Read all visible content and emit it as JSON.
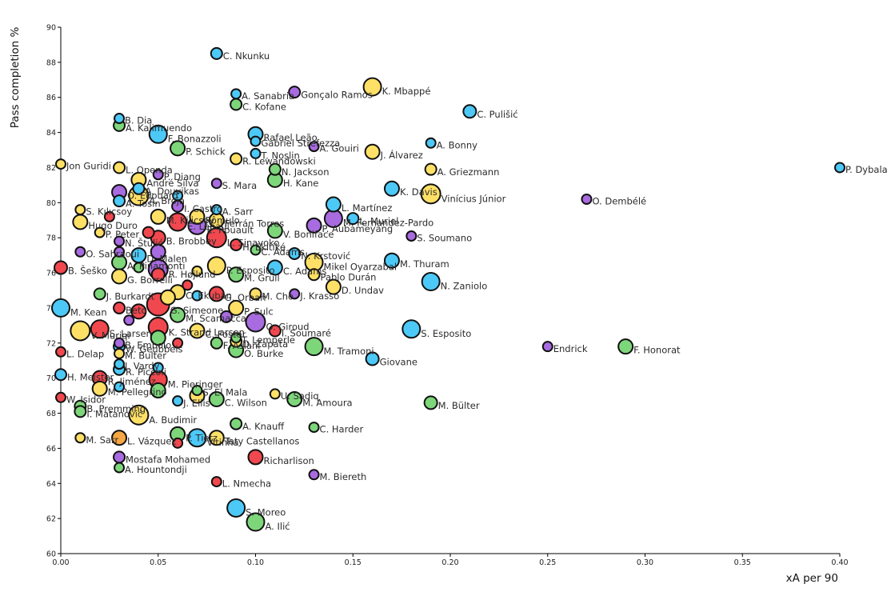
{
  "chart_data": {
    "type": "scatter",
    "title": "",
    "xlabel": "xA per 90",
    "ylabel": "Pass completion %",
    "xlim": [
      0,
      0.4
    ],
    "ylim": [
      60,
      90
    ],
    "xticks": [
      "0.00",
      "0.05",
      "0.10",
      "0.15",
      "0.20",
      "0.25",
      "0.30",
      "0.35",
      "0.40"
    ],
    "yticks": [
      "60",
      "62",
      "64",
      "66",
      "68",
      "70",
      "72",
      "74",
      "76",
      "78",
      "80",
      "82",
      "84",
      "86",
      "88",
      "90"
    ],
    "grid": false,
    "legend": "none",
    "colors": {
      "blue": "#4cc9f7",
      "green": "#7ed67a",
      "purple": "#a86be0",
      "yellow": "#ffe066",
      "red": "#f0484e",
      "orange": "#f5a742"
    },
    "points": [
      {
        "label": "C. Nkunku",
        "x": 0.08,
        "y": 88.5,
        "s": 7,
        "c": "blue"
      },
      {
        "label": "K. Mbappé",
        "x": 0.16,
        "y": 86.6,
        "s": 11,
        "c": "yellow"
      },
      {
        "label": "A. Sanabria",
        "x": 0.09,
        "y": 86.2,
        "s": 6,
        "c": "blue"
      },
      {
        "label": "Gonçalo Ramos",
        "x": 0.12,
        "y": 86.3,
        "s": 7,
        "c": "purple"
      },
      {
        "label": "C. Kofane",
        "x": 0.09,
        "y": 85.6,
        "s": 7,
        "c": "green"
      },
      {
        "label": "C. Pulišić",
        "x": 0.21,
        "y": 85.2,
        "s": 8,
        "c": "blue"
      },
      {
        "label": "B. Dia",
        "x": 0.03,
        "y": 84.8,
        "s": 6,
        "c": "blue"
      },
      {
        "label": "A. Kalimuendo",
        "x": 0.03,
        "y": 84.4,
        "s": 7,
        "c": "green"
      },
      {
        "label": "F. Bonazzoli",
        "x": 0.05,
        "y": 83.9,
        "s": 11,
        "c": "blue"
      },
      {
        "label": "Rafael Leão",
        "x": 0.1,
        "y": 83.9,
        "s": 9,
        "c": "blue"
      },
      {
        "label": "Gabriel Strefezza",
        "x": 0.1,
        "y": 83.5,
        "s": 6,
        "c": "blue"
      },
      {
        "label": "A. Bonny",
        "x": 0.19,
        "y": 83.4,
        "s": 6,
        "c": "blue"
      },
      {
        "label": "A. Gouiri",
        "x": 0.13,
        "y": 83.2,
        "s": 6,
        "c": "purple"
      },
      {
        "label": "P. Schick",
        "x": 0.06,
        "y": 83.1,
        "s": 9,
        "c": "green"
      },
      {
        "label": "J. Álvarez",
        "x": 0.16,
        "y": 82.9,
        "s": 9,
        "c": "yellow"
      },
      {
        "label": "T. Noslin",
        "x": 0.1,
        "y": 82.8,
        "s": 6,
        "c": "blue"
      },
      {
        "label": "R. Lewandowski",
        "x": 0.09,
        "y": 82.5,
        "s": 7,
        "c": "yellow"
      },
      {
        "label": "Jon Guridi",
        "x": 0.0,
        "y": 82.2,
        "s": 6,
        "c": "yellow"
      },
      {
        "label": "L. Openda",
        "x": 0.03,
        "y": 82.0,
        "s": 7,
        "c": "yellow"
      },
      {
        "label": "P. Dybala",
        "x": 0.4,
        "y": 82.0,
        "s": 6,
        "c": "blue"
      },
      {
        "label": "A. Griezmann",
        "x": 0.19,
        "y": 81.9,
        "s": 7,
        "c": "yellow"
      },
      {
        "label": "N. Jackson",
        "x": 0.11,
        "y": 81.9,
        "s": 7,
        "c": "green"
      },
      {
        "label": "P. Diang",
        "x": 0.05,
        "y": 81.6,
        "s": 6,
        "c": "purple"
      },
      {
        "label": "H. Kane",
        "x": 0.11,
        "y": 81.3,
        "s": 9,
        "c": "green"
      },
      {
        "label": "André Silva",
        "x": 0.04,
        "y": 81.3,
        "s": 9,
        "c": "yellow"
      },
      {
        "label": "S. Mara",
        "x": 0.08,
        "y": 81.1,
        "s": 6,
        "c": "purple"
      },
      {
        "label": "A. Douvikas",
        "x": 0.04,
        "y": 80.8,
        "s": 7,
        "c": "blue"
      },
      {
        "label": "K. Davis",
        "x": 0.17,
        "y": 80.8,
        "s": 9,
        "c": "blue"
      },
      {
        "label": "O. Édouard",
        "x": 0.03,
        "y": 80.6,
        "s": 9,
        "c": "purple"
      },
      {
        "label": "Vinícius Júnior",
        "x": 0.19,
        "y": 80.5,
        "s": 12,
        "c": "yellow"
      },
      {
        "label": "A. Broja",
        "x": 0.04,
        "y": 80.4,
        "s": 12,
        "c": "yellow"
      },
      {
        "label": "O. Dembélé",
        "x": 0.27,
        "y": 80.2,
        "s": 6,
        "c": "purple"
      },
      {
        "label": "A. Tosin",
        "x": 0.03,
        "y": 80.1,
        "s": 7,
        "c": "blue"
      },
      {
        "label": "L. Martínez",
        "x": 0.14,
        "y": 79.9,
        "s": 9,
        "c": "blue"
      },
      {
        "label": "I. Castro",
        "x": 0.06,
        "y": 79.8,
        "s": 7,
        "c": "purple"
      },
      {
        "label": "S. Kılıçsoy",
        "x": 0.01,
        "y": 79.6,
        "s": 6,
        "c": "yellow"
      },
      {
        "label": "A. Sarr",
        "x": 0.08,
        "y": 79.6,
        "s": 6,
        "c": "blue"
      },
      {
        "label": "M. Kilicsoy",
        "x": 0.05,
        "y": 79.2,
        "s": 9,
        "c": "yellow"
      },
      {
        "label": "M. Fernandez-Pardo",
        "x": 0.14,
        "y": 79.1,
        "s": 11,
        "c": "purple"
      },
      {
        "label": "Rômulo",
        "x": 0.07,
        "y": 79.2,
        "s": 9,
        "c": "yellow"
      },
      {
        "label": "Ferrán Torres",
        "x": 0.08,
        "y": 79.0,
        "s": 9,
        "c": "yellow"
      },
      {
        "label": "Hugo Duro",
        "x": 0.01,
        "y": 78.9,
        "s": 9,
        "c": "yellow"
      },
      {
        "label": "L. Muriel",
        "x": 0.15,
        "y": 79.1,
        "s": 7,
        "c": "blue"
      },
      {
        "label": "E. Lepaul",
        "x": 0.06,
        "y": 78.9,
        "s": 11,
        "c": "red"
      },
      {
        "label": "P. Aubameyang",
        "x": 0.13,
        "y": 78.7,
        "s": 9,
        "c": "purple"
      },
      {
        "label": "E. Rouault",
        "x": 0.07,
        "y": 78.7,
        "s": 11,
        "c": "purple"
      },
      {
        "label": "V. Boniface",
        "x": 0.11,
        "y": 78.4,
        "s": 9,
        "c": "green"
      },
      {
        "label": "P. Peter",
        "x": 0.02,
        "y": 78.3,
        "s": 6,
        "c": "yellow"
      },
      {
        "label": "S. Soumano",
        "x": 0.18,
        "y": 78.1,
        "s": 6,
        "c": "purple"
      },
      {
        "label": "B. Brobbey",
        "x": 0.05,
        "y": 78.0,
        "s": 9,
        "c": "red"
      },
      {
        "label": "L. Sinayoko",
        "x": 0.08,
        "y": 78.0,
        "s": 12,
        "c": "red"
      },
      {
        "label": "N. Štulić",
        "x": 0.03,
        "y": 77.8,
        "s": 6,
        "c": "purple"
      },
      {
        "label": "H. Ekitiké",
        "x": 0.09,
        "y": 77.6,
        "s": 7,
        "c": "red"
      },
      {
        "label": "O. Sahraoui",
        "x": 0.01,
        "y": 77.2,
        "s": 6,
        "c": "purple"
      },
      {
        "label": "C. Adams",
        "x": 0.1,
        "y": 77.3,
        "s": 6,
        "c": "green"
      },
      {
        "label": "D. Malen",
        "x": 0.04,
        "y": 77.0,
        "s": 9,
        "c": "blue"
      },
      {
        "label": "N. Krstović",
        "x": 0.12,
        "y": 77.1,
        "s": 7,
        "c": "blue"
      },
      {
        "label": "M. Thuram",
        "x": 0.17,
        "y": 76.7,
        "s": 9,
        "c": "blue"
      },
      {
        "label": "A. Pinamonti",
        "x": 0.03,
        "y": 76.6,
        "s": 9,
        "c": "green"
      },
      {
        "label": "Mikel Oyarzabal",
        "x": 0.13,
        "y": 76.6,
        "s": 11,
        "c": "yellow"
      },
      {
        "label": "P. Esposito",
        "x": 0.08,
        "y": 76.4,
        "s": 11,
        "c": "yellow"
      },
      {
        "label": "R. Højlund",
        "x": 0.05,
        "y": 76.2,
        "s": 12,
        "c": "purple"
      },
      {
        "label": "C. Adams",
        "x": 0.11,
        "y": 76.3,
        "s": 9,
        "c": "blue"
      },
      {
        "label": "B. Šeško",
        "x": 0.0,
        "y": 76.3,
        "s": 8,
        "c": "red"
      },
      {
        "label": "M. Grüll",
        "x": 0.09,
        "y": 75.9,
        "s": 9,
        "c": "green"
      },
      {
        "label": "Pablo Durán",
        "x": 0.13,
        "y": 75.9,
        "s": 7,
        "c": "yellow"
      },
      {
        "label": "G. Borrelli",
        "x": 0.03,
        "y": 75.8,
        "s": 9,
        "c": "yellow"
      },
      {
        "label": "N. Zaniolo",
        "x": 0.19,
        "y": 75.5,
        "s": 11,
        "c": "blue"
      },
      {
        "label": "D. Undav",
        "x": 0.14,
        "y": 75.2,
        "s": 9,
        "c": "yellow"
      },
      {
        "label": "C. Ekuban",
        "x": 0.06,
        "y": 74.9,
        "s": 9,
        "c": "yellow"
      },
      {
        "label": "J. Krasso",
        "x": 0.12,
        "y": 74.8,
        "s": 6,
        "c": "purple"
      },
      {
        "label": "J. Burkardt",
        "x": 0.02,
        "y": 74.8,
        "s": 7,
        "c": "green"
      },
      {
        "label": "G. Orban",
        "x": 0.08,
        "y": 74.8,
        "s": 9,
        "c": "red"
      },
      {
        "label": "M. Cho",
        "x": 0.1,
        "y": 74.8,
        "s": 7,
        "c": "yellow"
      },
      {
        "label": "M. Kean",
        "x": 0.0,
        "y": 74.0,
        "s": 11,
        "c": "blue"
      },
      {
        "label": "G. Simeone",
        "x": 0.05,
        "y": 74.2,
        "s": 14,
        "c": "red"
      },
      {
        "label": "P. Sulc",
        "x": 0.09,
        "y": 74.0,
        "s": 9,
        "c": "yellow"
      },
      {
        "label": "Beto",
        "x": 0.03,
        "y": 74.0,
        "s": 7,
        "c": "red"
      },
      {
        "label": "M. Scamacca",
        "x": 0.06,
        "y": 73.6,
        "s": 9,
        "c": "green"
      },
      {
        "label": "O. Giroud",
        "x": 0.1,
        "y": 73.2,
        "s": 12,
        "c": "purple"
      },
      {
        "label": "V. Muriqi",
        "x": 0.01,
        "y": 72.7,
        "s": 12,
        "c": "yellow"
      },
      {
        "label": "S. Larsen",
        "x": 0.02,
        "y": 72.8,
        "s": 11,
        "c": "red"
      },
      {
        "label": "S. Esposito",
        "x": 0.18,
        "y": 72.8,
        "s": 11,
        "c": "blue"
      },
      {
        "label": "C. Foster",
        "x": 0.07,
        "y": 72.7,
        "s": 9,
        "c": "yellow"
      },
      {
        "label": "I. Soumaré",
        "x": 0.11,
        "y": 72.7,
        "s": 7,
        "c": "red"
      },
      {
        "label": "K. Strand Larsen",
        "x": 0.05,
        "y": 72.9,
        "s": 12,
        "c": "red"
      },
      {
        "label": "T. Lemperle",
        "x": 0.09,
        "y": 72.3,
        "s": 6,
        "c": "green"
      },
      {
        "label": "D. Zapata",
        "x": 0.09,
        "y": 72.1,
        "s": 7,
        "c": "yellow"
      },
      {
        "label": "B. Embolo",
        "x": 0.03,
        "y": 72.0,
        "s": 6,
        "c": "purple"
      },
      {
        "label": "W. Geubbels",
        "x": 0.03,
        "y": 71.8,
        "s": 7,
        "c": "blue"
      },
      {
        "label": "M. Tramoni",
        "x": 0.13,
        "y": 71.8,
        "s": 11,
        "c": "green"
      },
      {
        "label": "F. Honorat",
        "x": 0.29,
        "y": 71.8,
        "s": 9,
        "c": "green"
      },
      {
        "label": "O. Burke",
        "x": 0.09,
        "y": 71.6,
        "s": 9,
        "c": "green"
      },
      {
        "label": "Endrick",
        "x": 0.25,
        "y": 71.8,
        "s": 6,
        "c": "purple"
      },
      {
        "label": "F. Aslani",
        "x": 0.08,
        "y": 72.0,
        "s": 7,
        "c": "green"
      },
      {
        "label": "L. Delap",
        "x": 0.0,
        "y": 71.5,
        "s": 6,
        "c": "red"
      },
      {
        "label": "M. Bulter",
        "x": 0.03,
        "y": 71.4,
        "s": 6,
        "c": "yellow"
      },
      {
        "label": "Giovane",
        "x": 0.16,
        "y": 71.1,
        "s": 8,
        "c": "blue"
      },
      {
        "label": "J. Vardy",
        "x": 0.03,
        "y": 70.8,
        "s": 6,
        "c": "blue"
      },
      {
        "label": "R. Piccoli",
        "x": 0.03,
        "y": 70.5,
        "s": 7,
        "c": "blue"
      },
      {
        "label": "H. Meister",
        "x": 0.0,
        "y": 70.2,
        "s": 7,
        "c": "blue"
      },
      {
        "label": "R. Jiménez",
        "x": 0.02,
        "y": 70.0,
        "s": 9,
        "c": "red"
      },
      {
        "label": "M. Pieringer",
        "x": 0.05,
        "y": 69.9,
        "s": 11,
        "c": "red"
      },
      {
        "label": "M. Pellegrino",
        "x": 0.02,
        "y": 69.4,
        "s": 9,
        "c": "yellow"
      },
      {
        "label": "S. El Mala",
        "x": 0.07,
        "y": 69.3,
        "s": 6,
        "c": "green"
      },
      {
        "label": "U. Sadiq",
        "x": 0.11,
        "y": 69.1,
        "s": 6,
        "c": "yellow"
      },
      {
        "label": "W. Isidor",
        "x": 0.0,
        "y": 68.9,
        "s": 6,
        "c": "red"
      },
      {
        "label": "J. Ellis",
        "x": 0.06,
        "y": 68.7,
        "s": 6,
        "c": "blue"
      },
      {
        "label": "C. Wilson",
        "x": 0.08,
        "y": 68.8,
        "s": 9,
        "c": "green"
      },
      {
        "label": "M. Amoura",
        "x": 0.12,
        "y": 68.8,
        "s": 9,
        "c": "green"
      },
      {
        "label": "M. Bülter",
        "x": 0.19,
        "y": 68.6,
        "s": 8,
        "c": "green"
      },
      {
        "label": "B. Premming",
        "x": 0.01,
        "y": 68.4,
        "s": 7,
        "c": "green"
      },
      {
        "label": "I. Matanović",
        "x": 0.01,
        "y": 68.1,
        "s": 7,
        "c": "green"
      },
      {
        "label": "A. Budimir",
        "x": 0.04,
        "y": 67.9,
        "s": 12,
        "c": "yellow"
      },
      {
        "label": "A. Knauff",
        "x": 0.09,
        "y": 67.4,
        "s": 7,
        "c": "green"
      },
      {
        "label": "C. Harder",
        "x": 0.13,
        "y": 67.2,
        "s": 6,
        "c": "green"
      },
      {
        "label": "M. Sarr",
        "x": 0.01,
        "y": 66.6,
        "s": 6,
        "c": "yellow"
      },
      {
        "label": "L. Vázquez",
        "x": 0.03,
        "y": 66.6,
        "s": 9,
        "c": "orange"
      },
      {
        "label": "P. Tietz",
        "x": 0.06,
        "y": 66.8,
        "s": 9,
        "c": "green"
      },
      {
        "label": "Vitinha",
        "x": 0.07,
        "y": 66.6,
        "s": 11,
        "c": "blue"
      },
      {
        "label": "Taty Castellanos",
        "x": 0.08,
        "y": 66.6,
        "s": 9,
        "c": "yellow"
      },
      {
        "label": "Richarlison",
        "x": 0.1,
        "y": 65.5,
        "s": 9,
        "c": "red"
      },
      {
        "label": "Mostafa Mohamed",
        "x": 0.03,
        "y": 65.5,
        "s": 7,
        "c": "purple"
      },
      {
        "label": "A. Hountondji",
        "x": 0.03,
        "y": 64.9,
        "s": 6,
        "c": "green"
      },
      {
        "label": "M. Biereth",
        "x": 0.13,
        "y": 64.5,
        "s": 6,
        "c": "purple"
      },
      {
        "label": "L. Nmecha",
        "x": 0.08,
        "y": 64.1,
        "s": 6,
        "c": "red"
      },
      {
        "label": "S. Moreo",
        "x": 0.09,
        "y": 62.6,
        "s": 11,
        "c": "blue"
      },
      {
        "label": "A. Ilić",
        "x": 0.1,
        "y": 61.8,
        "s": 11,
        "c": "green"
      },
      {
        "label": "",
        "x": 0.06,
        "y": 66.3,
        "s": 6,
        "c": "red"
      },
      {
        "label": "",
        "x": 0.065,
        "y": 75.3,
        "s": 6,
        "c": "red"
      },
      {
        "label": "",
        "x": 0.05,
        "y": 75.9,
        "s": 8,
        "c": "red"
      },
      {
        "label": "",
        "x": 0.07,
        "y": 76.1,
        "s": 6,
        "c": "yellow"
      },
      {
        "label": "",
        "x": 0.04,
        "y": 76.3,
        "s": 6,
        "c": "green"
      },
      {
        "label": "",
        "x": 0.055,
        "y": 74.6,
        "s": 9,
        "c": "yellow"
      },
      {
        "label": "",
        "x": 0.04,
        "y": 73.8,
        "s": 9,
        "c": "red"
      },
      {
        "label": "",
        "x": 0.035,
        "y": 73.3,
        "s": 6,
        "c": "purple"
      },
      {
        "label": "",
        "x": 0.06,
        "y": 72.0,
        "s": 6,
        "c": "red"
      },
      {
        "label": "",
        "x": 0.05,
        "y": 72.3,
        "s": 9,
        "c": "green"
      },
      {
        "label": "",
        "x": 0.07,
        "y": 74.7,
        "s": 6,
        "c": "blue"
      },
      {
        "label": "",
        "x": 0.085,
        "y": 73.5,
        "s": 7,
        "c": "purple"
      },
      {
        "label": "",
        "x": 0.06,
        "y": 80.4,
        "s": 6,
        "c": "blue"
      },
      {
        "label": "",
        "x": 0.05,
        "y": 77.2,
        "s": 9,
        "c": "purple"
      },
      {
        "label": "",
        "x": 0.045,
        "y": 78.3,
        "s": 7,
        "c": "red"
      },
      {
        "label": "",
        "x": 0.03,
        "y": 77.2,
        "s": 6,
        "c": "purple"
      },
      {
        "label": "",
        "x": 0.025,
        "y": 79.2,
        "s": 6,
        "c": "red"
      },
      {
        "label": "",
        "x": 0.03,
        "y": 69.5,
        "s": 6,
        "c": "blue"
      },
      {
        "label": "",
        "x": 0.05,
        "y": 70.6,
        "s": 6,
        "c": "blue"
      },
      {
        "label": "",
        "x": 0.07,
        "y": 69.0,
        "s": 9,
        "c": "yellow"
      },
      {
        "label": "",
        "x": 0.05,
        "y": 69.3,
        "s": 9,
        "c": "green"
      }
    ]
  }
}
